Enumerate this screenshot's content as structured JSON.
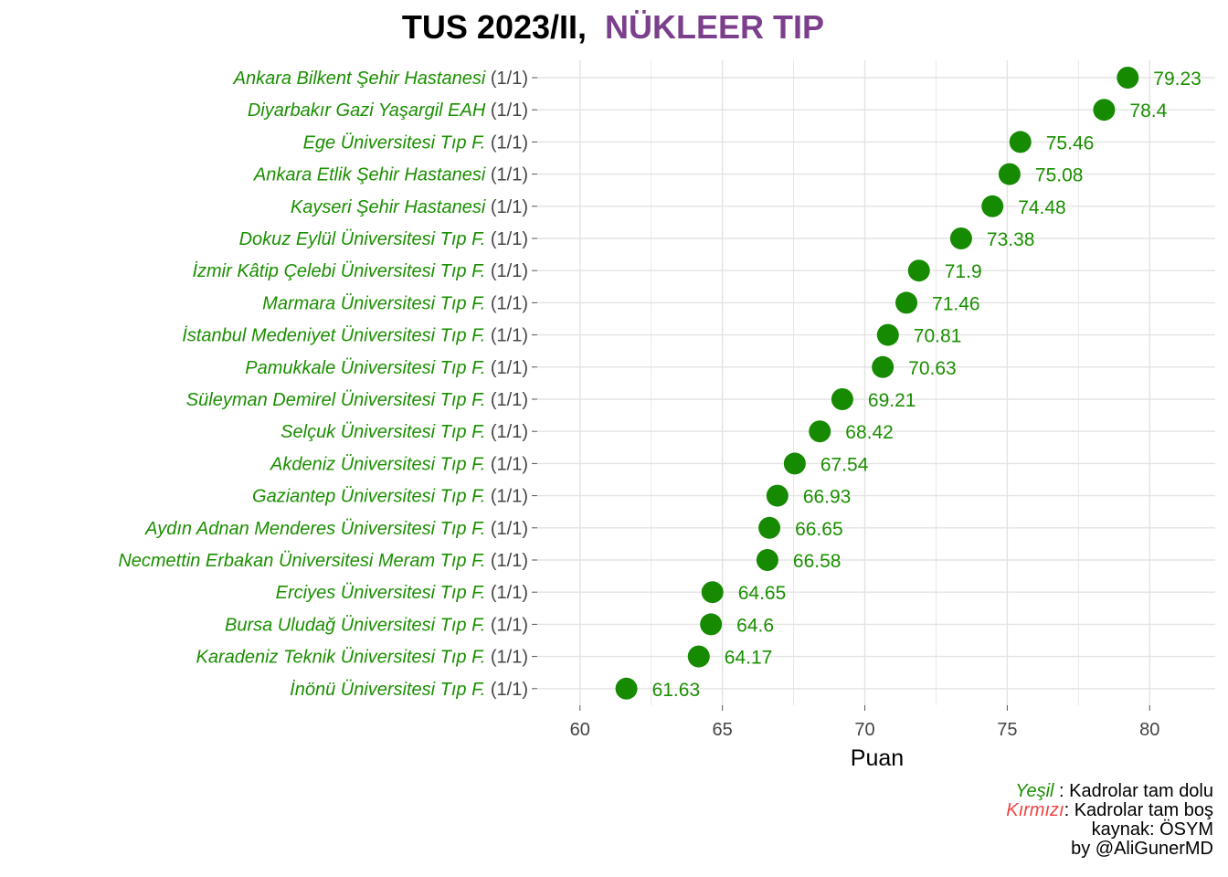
{
  "title": {
    "part1": "TUS 2023/II,",
    "part2": "NÜKLEER TIP",
    "part2_color": "#7b3f8c"
  },
  "colors": {
    "filled": "#168a00",
    "label_filled": "#1a8f00",
    "empty": "#ee4444",
    "grid": "#e3e3e3",
    "axis_text": "#444444"
  },
  "chart_data": {
    "type": "scatter",
    "title": "TUS 2023/II, NÜKLEER TIP",
    "xlabel": "Puan",
    "ylabel": "",
    "xlim": [
      58.5,
      82.3
    ],
    "x_ticks": [
      60,
      65,
      70,
      75,
      80
    ],
    "grid": true,
    "points": [
      {
        "name": "Ankara Bilkent Şehir Hastanesi",
        "quota": "(1/1)",
        "value": 79.23,
        "label": "79.23"
      },
      {
        "name": "Diyarbakır Gazi Yaşargil EAH",
        "quota": "(1/1)",
        "value": 78.4,
        "label": "78.4"
      },
      {
        "name": "Ege Üniversitesi Tıp F.",
        "quota": "(1/1)",
        "value": 75.46,
        "label": "75.46"
      },
      {
        "name": "Ankara Etlik Şehir Hastanesi",
        "quota": "(1/1)",
        "value": 75.08,
        "label": "75.08"
      },
      {
        "name": "Kayseri Şehir Hastanesi",
        "quota": "(1/1)",
        "value": 74.48,
        "label": "74.48"
      },
      {
        "name": "Dokuz Eylül Üniversitesi Tıp F.",
        "quota": "(1/1)",
        "value": 73.38,
        "label": "73.38"
      },
      {
        "name": "İzmir Kâtip Çelebi Üniversitesi Tıp F.",
        "quota": "(1/1)",
        "value": 71.9,
        "label": "71.9"
      },
      {
        "name": "Marmara Üniversitesi Tıp F.",
        "quota": "(1/1)",
        "value": 71.46,
        "label": "71.46"
      },
      {
        "name": "İstanbul Medeniyet Üniversitesi Tıp F.",
        "quota": "(1/1)",
        "value": 70.81,
        "label": "70.81"
      },
      {
        "name": "Pamukkale Üniversitesi Tıp F.",
        "quota": "(1/1)",
        "value": 70.63,
        "label": "70.63"
      },
      {
        "name": "Süleyman Demirel Üniversitesi Tıp F.",
        "quota": "(1/1)",
        "value": 69.21,
        "label": "69.21"
      },
      {
        "name": "Selçuk Üniversitesi Tıp F.",
        "quota": "(1/1)",
        "value": 68.42,
        "label": "68.42"
      },
      {
        "name": "Akdeniz Üniversitesi Tıp F.",
        "quota": "(1/1)",
        "value": 67.54,
        "label": "67.54"
      },
      {
        "name": "Gaziantep Üniversitesi Tıp F.",
        "quota": "(1/1)",
        "value": 66.93,
        "label": "66.93"
      },
      {
        "name": "Aydın Adnan Menderes Üniversitesi Tıp F.",
        "quota": "(1/1)",
        "value": 66.65,
        "label": "66.65"
      },
      {
        "name": "Necmettin Erbakan Üniversitesi Meram Tıp F.",
        "quota": "(1/1)",
        "value": 66.58,
        "label": "66.58"
      },
      {
        "name": "Erciyes Üniversitesi Tıp F.",
        "quota": "(1/1)",
        "value": 64.65,
        "label": "64.65"
      },
      {
        "name": "Bursa Uludağ Üniversitesi Tıp F.",
        "quota": "(1/1)",
        "value": 64.6,
        "label": "64.6"
      },
      {
        "name": "Karadeniz Teknik Üniversitesi Tıp F.",
        "quota": "(1/1)",
        "value": 64.17,
        "label": "64.17"
      },
      {
        "name": "İnönü Üniversitesi Tıp F.",
        "quota": "(1/1)",
        "value": 61.63,
        "label": "61.63"
      }
    ]
  },
  "caption": {
    "line1_colored": "Yeşil",
    "line1_rest": " : Kadrolar tam dolu",
    "line2_colored": "Kırmızı",
    "line2_rest": ": Kadrolar tam boş",
    "line3": "kaynak: ÖSYM",
    "line4": "by @AliGunerMD"
  }
}
